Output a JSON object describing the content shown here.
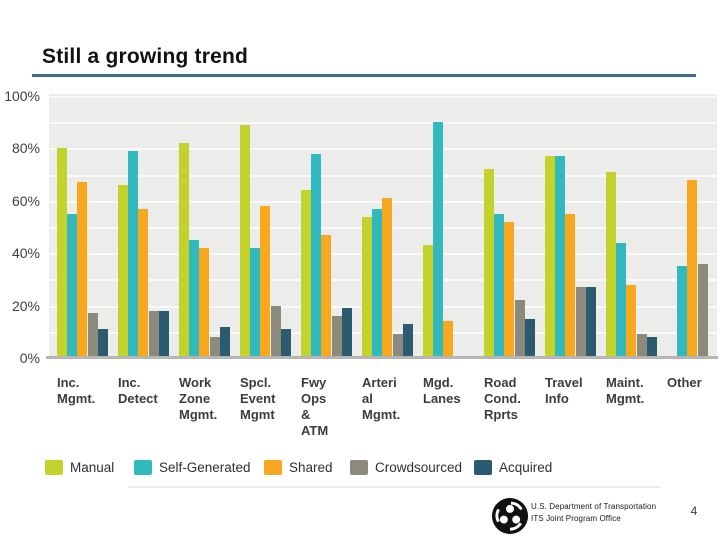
{
  "slide": {
    "title": "Still a growing trend",
    "page_number": "4",
    "footer": {
      "org_line1": "U.S. Department of Transportation",
      "org_line2": "ITS Joint Program Office"
    }
  },
  "colors": {
    "title_underline": "#3e6d8e",
    "plot_background": "#ececeb",
    "gridline": "#fafaf9",
    "axis_line": "#b5b5b3",
    "axis_text": "#3f3f3f",
    "series": {
      "Manual": "#c4d22c",
      "Self-Generated": "#32b9bd",
      "Shared": "#f8a81e",
      "Crowdsourced": "#8c8a7c",
      "Acquired": "#2a5b6f"
    }
  },
  "chart_data": {
    "type": "bar",
    "title": "",
    "xlabel": "",
    "ylabel": "",
    "ylim": [
      0,
      100
    ],
    "yticks": [
      "0%",
      "20%",
      "40%",
      "60%",
      "80%",
      "100%"
    ],
    "grid": "horizontal white gridlines every 10% on light gray plot",
    "legend_position": "bottom",
    "categories": [
      "Inc. Mgmt.",
      "Inc. Detect",
      "Work Zone Mgmt.",
      "Spcl. Event Mgmt",
      "Fwy Ops & ATM",
      "Arterial Mgmt.",
      "Mgd. Lanes",
      "Road Cond. Rprts",
      "Travel Info",
      "Maint. Mgmt.",
      "Other"
    ],
    "category_label_lines": [
      [
        "Inc.",
        "Mgmt."
      ],
      [
        "Inc.",
        "Detect"
      ],
      [
        "Work",
        "Zone",
        "Mgmt."
      ],
      [
        "Spcl.",
        "Event",
        "Mgmt"
      ],
      [
        "Fwy",
        "Ops",
        "&",
        "ATM"
      ],
      [
        "Arteri",
        "al",
        "Mgmt."
      ],
      [
        "Mgd.",
        "Lanes"
      ],
      [
        "Road",
        "Cond.",
        "Rprts"
      ],
      [
        "Travel",
        "Info"
      ],
      [
        "Maint.",
        "Mgmt."
      ],
      [
        "Other"
      ]
    ],
    "series": [
      {
        "name": "Manual",
        "color": "#c4d22c",
        "values": [
          80,
          66,
          82,
          89,
          64,
          54,
          43,
          72,
          77,
          71,
          0
        ]
      },
      {
        "name": "Self-Generated",
        "color": "#32b9bd",
        "values": [
          55,
          79,
          45,
          42,
          78,
          57,
          90,
          55,
          77,
          44,
          35
        ]
      },
      {
        "name": "Shared",
        "color": "#f8a81e",
        "values": [
          67,
          57,
          42,
          58,
          47,
          61,
          14,
          52,
          55,
          28,
          68
        ]
      },
      {
        "name": "Crowdsourced",
        "color": "#8c8a7c",
        "values": [
          17,
          18,
          8,
          20,
          16,
          9,
          0,
          22,
          27,
          9,
          36
        ]
      },
      {
        "name": "Acquired",
        "color": "#2a5b6f",
        "values": [
          11,
          18,
          12,
          11,
          19,
          13,
          0,
          15,
          27,
          8,
          0
        ]
      }
    ]
  }
}
